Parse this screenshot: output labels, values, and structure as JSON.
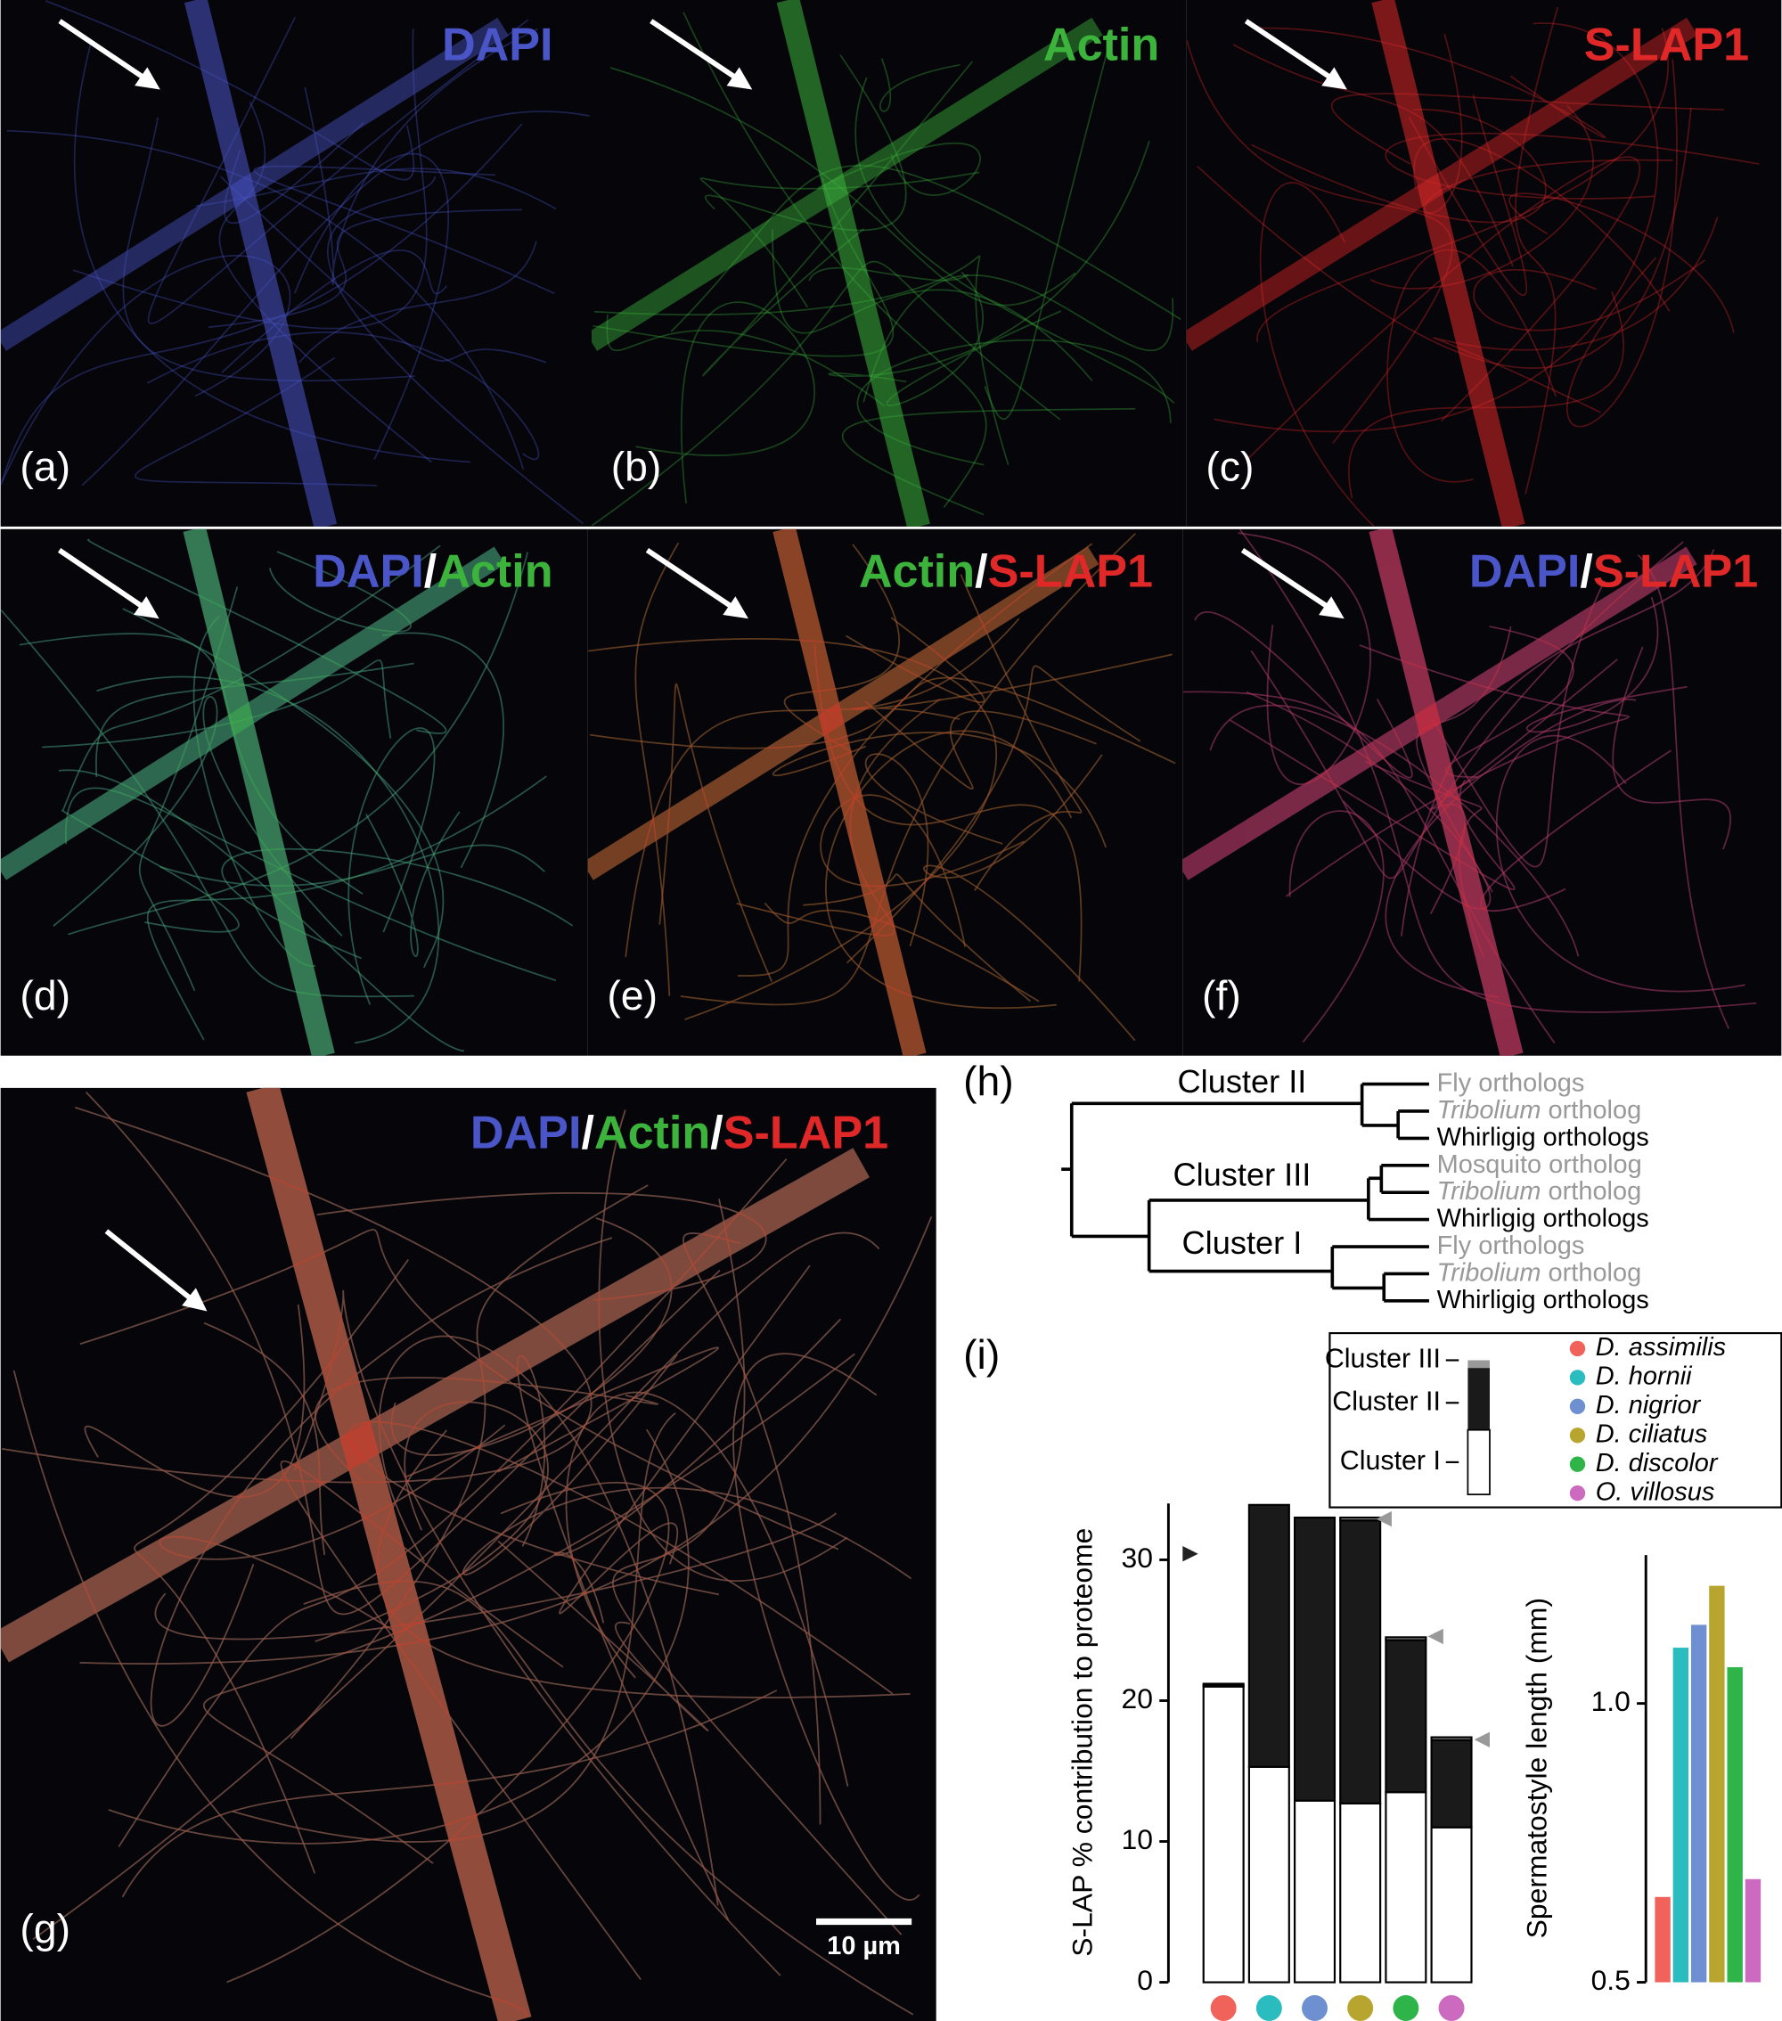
{
  "panels": [
    {
      "label": "(a)",
      "title": [
        {
          "text": "DAPI",
          "color": "#4a55c8"
        }
      ]
    },
    {
      "label": "(b)",
      "title": [
        {
          "text": "Actin",
          "color": "#3cb43c"
        }
      ]
    },
    {
      "label": "(c)",
      "title": [
        {
          "text": "S-LAP1",
          "color": "#e02828"
        }
      ]
    },
    {
      "label": "(d)",
      "title": [
        {
          "text": "DAPI",
          "color": "#4a55c8"
        },
        {
          "text": "/",
          "color": "#ffffff"
        },
        {
          "text": "Actin",
          "color": "#3cb43c"
        }
      ]
    },
    {
      "label": "(e)",
      "title": [
        {
          "text": "Actin",
          "color": "#3cb43c"
        },
        {
          "text": "/",
          "color": "#ffffff"
        },
        {
          "text": "S-LAP1",
          "color": "#e02828"
        }
      ]
    },
    {
      "label": "(f)",
      "title": [
        {
          "text": "DAPI",
          "color": "#4a55c8"
        },
        {
          "text": "/",
          "color": "#ffffff"
        },
        {
          "text": "S-LAP1",
          "color": "#e02828"
        }
      ]
    },
    {
      "label": "(g)",
      "title": [
        {
          "text": "DAPI",
          "color": "#4a55c8"
        },
        {
          "text": "/",
          "color": "#ffffff"
        },
        {
          "text": "Actin",
          "color": "#3cb43c"
        },
        {
          "text": "/",
          "color": "#ffffff"
        },
        {
          "text": "S-LAP1",
          "color": "#e02828"
        }
      ]
    }
  ],
  "scale_bar": "10 µm",
  "tree": {
    "label": "(h)",
    "clusters": [
      "Cluster II",
      "Cluster III",
      "Cluster I"
    ],
    "leaves": [
      {
        "text": "Fly orthologs",
        "color": "#999999"
      },
      {
        "italic": "Tribolium",
        "text": " ortholog",
        "color": "#999999"
      },
      {
        "text": "Whirligig orthologs",
        "color": "#000000"
      },
      {
        "text": "Mosquito ortholog",
        "color": "#999999"
      },
      {
        "italic": "Tribolium",
        "text": " ortholog",
        "color": "#999999"
      },
      {
        "text": "Whirligig orthologs",
        "color": "#000000"
      },
      {
        "text": "Fly orthologs",
        "color": "#999999"
      },
      {
        "italic": "Tribolium",
        "text": " ortholog",
        "color": "#999999"
      },
      {
        "text": "Whirligig orthologs",
        "color": "#000000"
      }
    ]
  },
  "chart_label": "(i)",
  "chart_data": [
    {
      "type": "bar",
      "stacked": true,
      "ylabel": "S-LAP % contribution to proteome",
      "categories": [
        "D. assimilis",
        "D. hornii",
        "D. nigrior",
        "D. ciliatus",
        "D. discolor",
        "O. villosus"
      ],
      "category_colors": [
        "#f0625a",
        "#2bbcc0",
        "#6e8fd0",
        "#b8a530",
        "#2fb44a",
        "#cc6ac0"
      ],
      "series": [
        {
          "name": "Cluster I",
          "color": "#ffffff",
          "values": [
            21.0,
            15.3,
            12.9,
            12.7,
            13.5,
            11.0
          ]
        },
        {
          "name": "Cluster II",
          "color": "#1a1a1a",
          "values": [
            0.1,
            18.6,
            20.1,
            20.1,
            10.8,
            6.2
          ]
        },
        {
          "name": "Cluster III",
          "color": "#999999",
          "values": [
            0.1,
            0,
            0,
            0.2,
            0.2,
            0.2
          ]
        }
      ],
      "ylim": [
        0,
        34
      ],
      "yticks": [
        0,
        10,
        20,
        30
      ]
    },
    {
      "type": "bar",
      "ylabel": "Spermatostyle length (mm)",
      "values": [
        0.653,
        1.1,
        1.141,
        1.211,
        1.065,
        0.685
      ],
      "colors": [
        "#f0625a",
        "#2bbcc0",
        "#6e8fd0",
        "#b8a530",
        "#2fb44a",
        "#cc6ac0"
      ],
      "ylim": [
        0.5,
        1.266
      ],
      "yticks": [
        0.5,
        {
          "value": 1,
          "label": "1.0"
        }
      ]
    }
  ]
}
